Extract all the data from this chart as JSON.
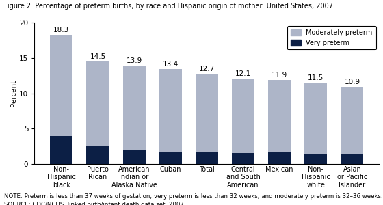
{
  "categories": [
    "Non-\nHispanic\nblack",
    "Puerto\nRican",
    "American\nIndian or\nAlaska Native",
    "Cuban",
    "Total",
    "Central\nand South\nAmerican",
    "Mexican",
    "Non-\nHispanic\nwhite",
    "Asian\nor Pacific\nIslander"
  ],
  "total": [
    18.3,
    14.5,
    13.9,
    13.4,
    12.7,
    12.1,
    11.9,
    11.5,
    10.9
  ],
  "very_preterm": [
    4.0,
    2.5,
    1.9,
    1.6,
    1.7,
    1.5,
    1.6,
    1.4,
    1.4
  ],
  "moderately_color": "#adb5c8",
  "very_preterm_color": "#0c1f45",
  "title": "Figure 2. Percentage of preterm births, by race and Hispanic origin of mother: United States, 2007",
  "ylabel": "Percent",
  "ylim": [
    0,
    20
  ],
  "yticks": [
    0,
    5,
    10,
    15,
    20
  ],
  "legend_mod": "Moderately preterm",
  "legend_very": "Very preterm",
  "note": "NOTE: Preterm is less than 37 weeks of gestation; very preterm is less than 32 weeks; and moderately preterm is 32–36 weeks.",
  "source": "SOURCE: CDC/NCHS, linked birth/infant death data set, 2007.",
  "title_fontsize": 7.0,
  "label_fontsize": 7.0,
  "tick_fontsize": 7.5,
  "value_fontsize": 7.5,
  "note_fontsize": 6.2,
  "bar_width": 0.62
}
